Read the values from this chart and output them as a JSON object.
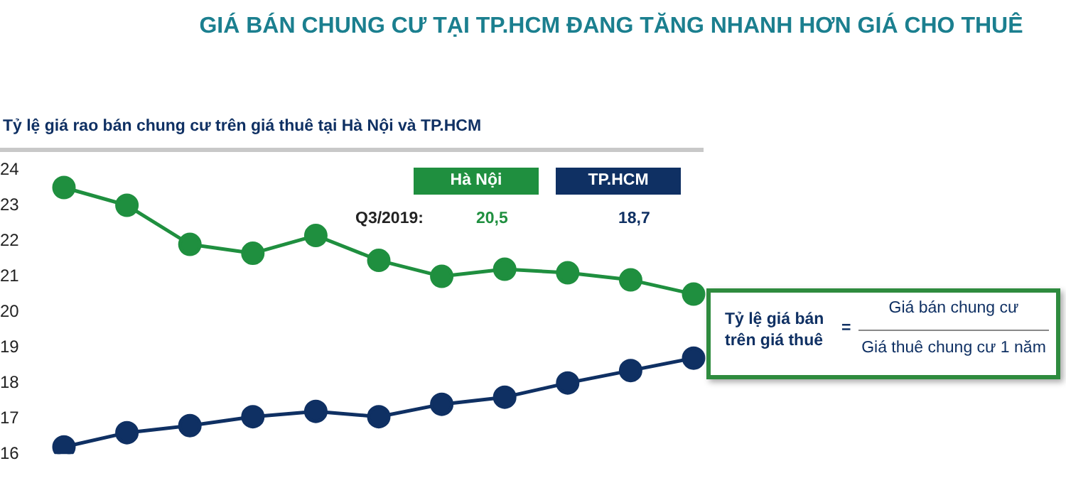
{
  "chart_data": {
    "type": "line",
    "title": "GIÁ BÁN CHUNG CƯ TẠI TP.HCM ĐANG TĂNG NHANH HƠN GIÁ CHO THUÊ",
    "subtitle": "Tỷ lệ giá rao bán chung cư trên giá thuê tại Hà Nội và TP.HCM",
    "categories": [
      null,
      null,
      null,
      null,
      null,
      null,
      null,
      null,
      null,
      null,
      null
    ],
    "series": [
      {
        "name": "Hà Nội",
        "color": "#1f8f3f",
        "values": [
          23.5,
          23.0,
          21.9,
          21.65,
          22.15,
          21.45,
          21.0,
          21.2,
          21.1,
          20.9,
          20.5
        ]
      },
      {
        "name": "TP.HCM",
        "color": "#0f3063",
        "values": [
          16.2,
          16.6,
          16.8,
          17.05,
          17.2,
          17.05,
          17.4,
          17.6,
          18.0,
          18.35,
          18.7
        ]
      }
    ],
    "ylim": [
      16,
      24
    ],
    "yticks": [
      16,
      17,
      18,
      19,
      20,
      21,
      22,
      23,
      24
    ],
    "grid": false,
    "legend": "top right",
    "marker": "circle",
    "line_style": "solid",
    "annotations": [
      "Q3/2019:",
      "20,5",
      "18,7",
      "Tỷ lệ giá bán trên giá thuê",
      "=",
      "Giá bán chung cư",
      "Giá thuê chung cư 1 năm"
    ]
  }
}
